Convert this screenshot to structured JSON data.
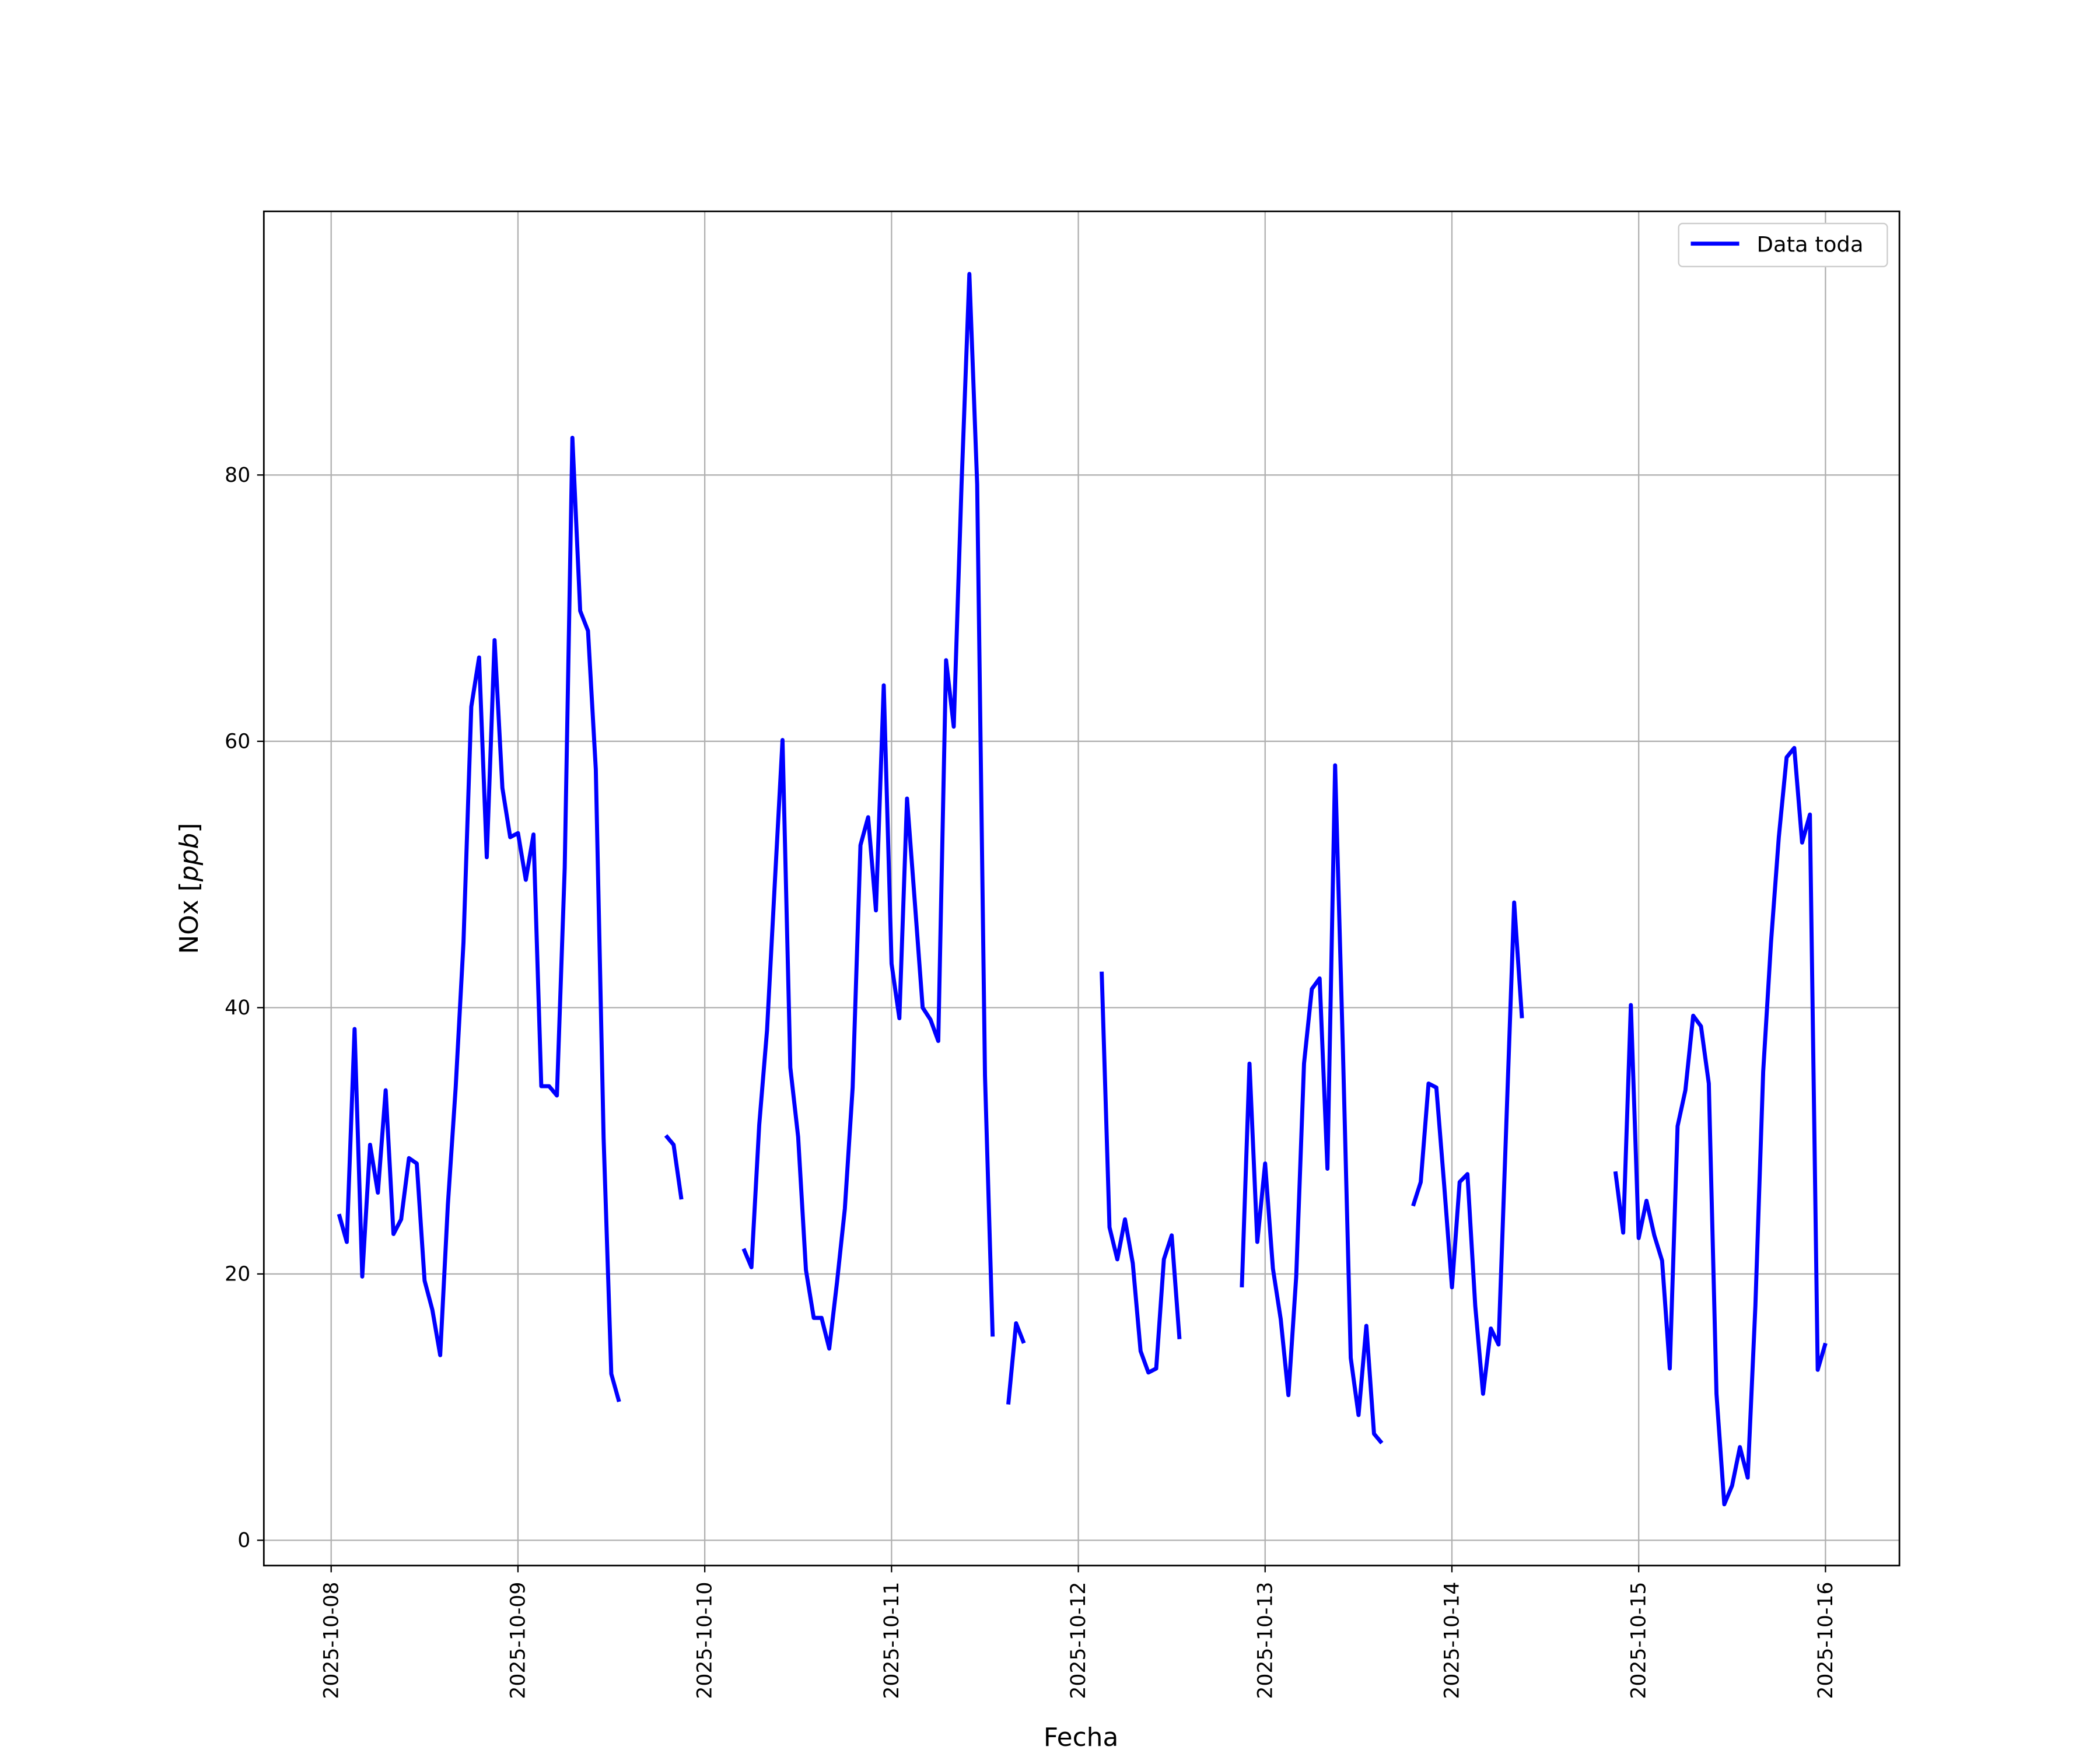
{
  "chart_data": {
    "type": "line",
    "title": "",
    "xlabel": "Fecha",
    "ylabel": "NOx [ppb]",
    "ylabel_parts": {
      "main": "NOx [",
      "italic": "ppb",
      "end": "]"
    },
    "xlim": [
      "2025-10-07T15:21",
      "2025-10-16T09:30"
    ],
    "ylim": [
      -1.9,
      99.8
    ],
    "xticks": [
      "2025-10-08",
      "2025-10-09",
      "2025-10-10",
      "2025-10-11",
      "2025-10-12",
      "2025-10-13",
      "2025-10-14",
      "2025-10-15",
      "2025-10-16"
    ],
    "yticks": [
      0,
      20,
      40,
      60,
      80
    ],
    "grid": true,
    "legend": {
      "placement": "top-right",
      "entries": [
        "Data toda"
      ]
    },
    "series": [
      {
        "name": "Data toda",
        "color": "#0000ff",
        "sampling": "1h",
        "segments": [
          {
            "start": "2025-10-08T01:00",
            "values": [
              24.5,
              22.4,
              38.4,
              19.8,
              29.7,
              26.1,
              33.8,
              23.0,
              24.1,
              28.7,
              28.3,
              19.5,
              17.3,
              13.9,
              25.2,
              34.0,
              44.9,
              62.6,
              66.3,
              51.3,
              67.6,
              56.5,
              52.8,
              53.1,
              49.6,
              53.0,
              34.1,
              34.1,
              33.4,
              50.5,
              82.8,
              69.8,
              68.3,
              57.9,
              30.2,
              12.5,
              10.4
            ]
          },
          {
            "start": "2025-10-09T19:00",
            "values": [
              30.4,
              29.7,
              25.6
            ]
          },
          {
            "start": "2025-10-10T05:00",
            "values": [
              21.9,
              20.5,
              31.2,
              38.3,
              49.4,
              60.1,
              35.5,
              30.3,
              20.3,
              16.7,
              16.7,
              14.4,
              19.4,
              24.9,
              34.0,
              52.2,
              54.3,
              47.3,
              64.2,
              43.3,
              39.2,
              55.7,
              47.9,
              40.0,
              39.1,
              37.5,
              66.1,
              61.1,
              79.3,
              95.1,
              79.3,
              34.9,
              15.3
            ]
          },
          {
            "start": "2025-10-11T15:00",
            "values": [
              10.2,
              16.3,
              14.8
            ]
          },
          {
            "start": "2025-10-12T03:00",
            "values": [
              42.7,
              23.5,
              21.1,
              24.1,
              20.8,
              14.2,
              12.6,
              12.9,
              21.1,
              22.9,
              15.1
            ]
          },
          {
            "start": "2025-10-12T21:00",
            "values": [
              19.0,
              35.8,
              22.4,
              28.3,
              20.4,
              16.6,
              10.9,
              19.8,
              35.8,
              41.4,
              42.2,
              27.9,
              58.2,
              36.8,
              13.7,
              9.4,
              16.1,
              8.0,
              7.3
            ]
          },
          {
            "start": "2025-10-13T19:00",
            "values": [
              25.1,
              26.9,
              34.3,
              34.0,
              26.7,
              19.0,
              26.9,
              27.5,
              17.6,
              11.0,
              15.9,
              14.7,
              31.3,
              47.9,
              39.2
            ]
          },
          {
            "start": "2025-10-14T21:00",
            "values": [
              27.7,
              23.1,
              40.2,
              22.7,
              25.5,
              22.9,
              21.0,
              12.9,
              31.1,
              33.8,
              39.4,
              38.6,
              34.3,
              11.0,
              2.7,
              4.1,
              7.0,
              4.7,
              17.6,
              35.2,
              44.9,
              52.8,
              58.8,
              59.5,
              52.4,
              54.5,
              12.8,
              14.8
            ]
          }
        ]
      }
    ]
  }
}
